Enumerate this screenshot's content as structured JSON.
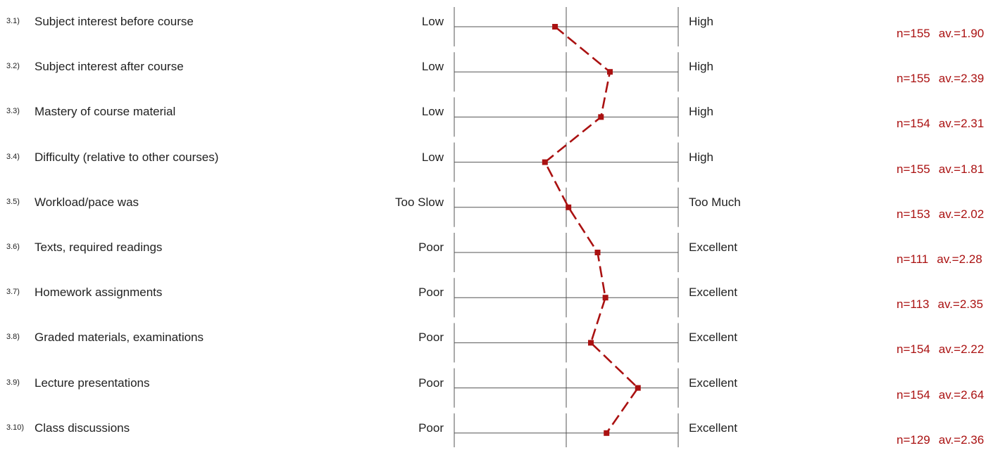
{
  "colors": {
    "line": "#aa1111",
    "grid": "#555555",
    "text": "#222222",
    "stats": "#aa1111"
  },
  "chart_data": {
    "type": "line",
    "scale_min": 1,
    "scale_max": 3,
    "marker": "square",
    "line_style": "dashed",
    "rows": [
      {
        "number": "3.1)",
        "label": "Subject interest before course",
        "left": "Low",
        "right": "High",
        "n": "n=155",
        "avg_text": "av.=1.90",
        "value": 1.9
      },
      {
        "number": "3.2)",
        "label": "Subject interest after course",
        "left": "Low",
        "right": "High",
        "n": "n=155",
        "avg_text": "av.=2.39",
        "value": 2.39
      },
      {
        "number": "3.3)",
        "label": "Mastery of course material",
        "left": "Low",
        "right": "High",
        "n": "n=154",
        "avg_text": "av.=2.31",
        "value": 2.31
      },
      {
        "number": "3.4)",
        "label": "Difficulty (relative to other courses)",
        "left": "Low",
        "right": "High",
        "n": "n=155",
        "avg_text": "av.=1.81",
        "value": 1.81
      },
      {
        "number": "3.5)",
        "label": "Workload/pace was",
        "left": "Too Slow",
        "right": "Too Much",
        "n": "n=153",
        "avg_text": "av.=2.02",
        "value": 2.02
      },
      {
        "number": "3.6)",
        "label": "Texts, required readings",
        "left": "Poor",
        "right": "Excellent",
        "n": "n=111",
        "avg_text": "av.=2.28",
        "value": 2.28
      },
      {
        "number": "3.7)",
        "label": "Homework assignments",
        "left": "Poor",
        "right": "Excellent",
        "n": "n=113",
        "avg_text": "av.=2.35",
        "value": 2.35
      },
      {
        "number": "3.8)",
        "label": "Graded materials, examinations",
        "left": "Poor",
        "right": "Excellent",
        "n": "n=154",
        "avg_text": "av.=2.22",
        "value": 2.22
      },
      {
        "number": "3.9)",
        "label": "Lecture presentations",
        "left": "Poor",
        "right": "Excellent",
        "n": "n=154",
        "avg_text": "av.=2.64",
        "value": 2.64
      },
      {
        "number": "3.10)",
        "label": "Class discussions",
        "left": "Poor",
        "right": "Excellent",
        "n": "n=129",
        "avg_text": "av.=2.36",
        "value": 2.36
      }
    ]
  }
}
